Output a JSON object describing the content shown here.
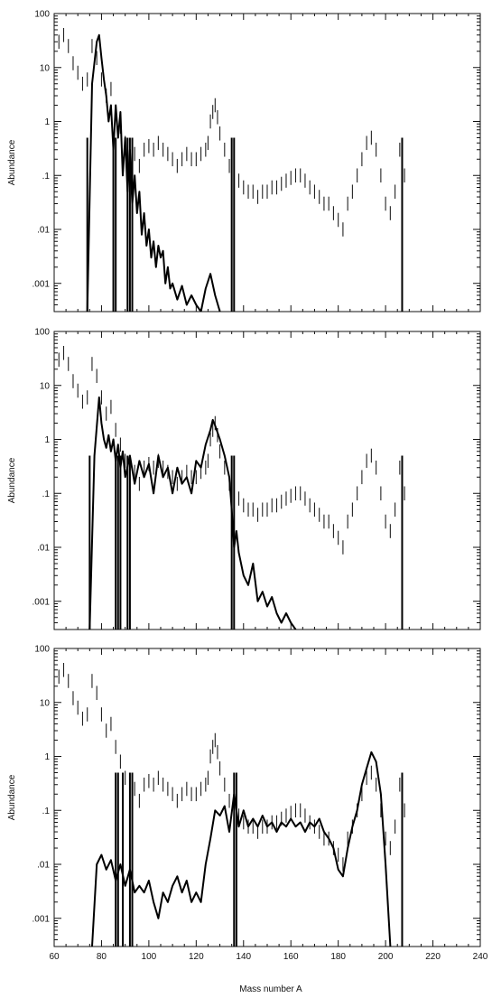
{
  "figure": {
    "xlabel": "Mass number A",
    "x_ticks": [
      "60",
      "80",
      "100",
      "120",
      "140",
      "160",
      "180",
      "200",
      "220",
      "240"
    ],
    "y_ticks": [
      "100",
      "10",
      "1",
      ".1",
      ".01",
      ".001"
    ]
  },
  "chart_data": [
    {
      "type": "line",
      "title": "",
      "ylabel": "Abundance",
      "xlabel": "",
      "xlim": [
        60,
        240
      ],
      "ylim": [
        0.0003,
        100
      ],
      "yscale": "log",
      "grid": false,
      "series": [
        {
          "style": "errorbar",
          "x": [
            60,
            62,
            64,
            66,
            68,
            70,
            72,
            74,
            76,
            78,
            80,
            82,
            84,
            86,
            88,
            90,
            92,
            94,
            96,
            98,
            100,
            102,
            104,
            106,
            108,
            110,
            112,
            114,
            116,
            118,
            120,
            122,
            124,
            125,
            126,
            127,
            128,
            129,
            130,
            132,
            134,
            136,
            138,
            140,
            142,
            144,
            146,
            148,
            150,
            152,
            154,
            156,
            158,
            160,
            162,
            164,
            166,
            168,
            170,
            172,
            174,
            176,
            178,
            180,
            182,
            184,
            186,
            188,
            190,
            192,
            194,
            196,
            198,
            200,
            202,
            204,
            206,
            208
          ],
          "y": [
            20,
            30,
            40,
            25,
            12,
            8,
            5,
            6,
            25,
            15,
            6,
            3,
            4,
            1.5,
            0.8,
            0.4,
            0.2,
            0.25,
            0.15,
            0.3,
            0.35,
            0.3,
            0.4,
            0.3,
            0.25,
            0.2,
            0.15,
            0.2,
            0.25,
            0.2,
            0.2,
            0.25,
            0.3,
            0.4,
            1.0,
            1.5,
            2.0,
            1.2,
            0.6,
            0.3,
            0.15,
            0.1,
            0.08,
            0.06,
            0.05,
            0.05,
            0.04,
            0.05,
            0.05,
            0.06,
            0.06,
            0.07,
            0.08,
            0.09,
            0.1,
            0.1,
            0.08,
            0.06,
            0.05,
            0.04,
            0.03,
            0.03,
            0.02,
            0.015,
            0.01,
            0.03,
            0.05,
            0.1,
            0.2,
            0.4,
            0.5,
            0.3,
            0.1,
            0.03,
            0.02,
            0.05,
            0.3,
            0.1
          ]
        },
        {
          "style": "solid",
          "x": [
            74,
            76,
            78,
            79,
            80,
            81,
            82,
            83,
            84,
            85,
            86,
            87,
            88,
            89,
            90,
            91,
            92,
            93,
            94,
            95,
            96,
            97,
            98,
            99,
            100,
            101,
            102,
            103,
            104,
            105,
            106,
            107,
            108,
            109,
            110,
            112,
            114,
            116,
            118,
            120,
            122,
            124,
            126,
            128,
            130
          ],
          "y": [
            0.0003,
            5,
            30,
            40,
            15,
            6,
            3,
            1,
            2,
            0.3,
            2,
            0.5,
            1.5,
            0.1,
            0.5,
            0.05,
            0.3,
            0.03,
            0.1,
            0.02,
            0.05,
            0.008,
            0.02,
            0.005,
            0.01,
            0.003,
            0.006,
            0.002,
            0.005,
            0.003,
            0.004,
            0.001,
            0.002,
            0.0008,
            0.001,
            0.0005,
            0.0009,
            0.0004,
            0.0006,
            0.0004,
            0.0003,
            0.0008,
            0.0015,
            0.0006,
            0.0003
          ]
        }
      ],
      "spikes": [
        74,
        85,
        86,
        91,
        92,
        93,
        135,
        136,
        207
      ]
    },
    {
      "type": "line",
      "title": "",
      "ylabel": "Abundance",
      "xlabel": "",
      "xlim": [
        60,
        240
      ],
      "ylim": [
        0.0003,
        100
      ],
      "yscale": "log",
      "grid": false,
      "series": [
        {
          "style": "errorbar",
          "x": [
            60,
            62,
            64,
            66,
            68,
            70,
            72,
            74,
            76,
            78,
            80,
            82,
            84,
            86,
            88,
            90,
            92,
            94,
            96,
            98,
            100,
            102,
            104,
            106,
            108,
            110,
            112,
            114,
            116,
            118,
            120,
            122,
            124,
            125,
            126,
            127,
            128,
            129,
            130,
            132,
            134,
            136,
            138,
            140,
            142,
            144,
            146,
            148,
            150,
            152,
            154,
            156,
            158,
            160,
            162,
            164,
            166,
            168,
            170,
            172,
            174,
            176,
            178,
            180,
            182,
            184,
            186,
            188,
            190,
            192,
            194,
            196,
            198,
            200,
            202,
            204,
            206,
            208
          ],
          "y": [
            20,
            30,
            40,
            25,
            12,
            8,
            5,
            6,
            25,
            15,
            6,
            3,
            4,
            1.5,
            0.8,
            0.4,
            0.2,
            0.25,
            0.15,
            0.3,
            0.35,
            0.3,
            0.4,
            0.3,
            0.25,
            0.2,
            0.15,
            0.2,
            0.25,
            0.2,
            0.2,
            0.25,
            0.3,
            0.4,
            1.0,
            1.5,
            2.0,
            1.2,
            0.6,
            0.3,
            0.15,
            0.1,
            0.08,
            0.06,
            0.05,
            0.05,
            0.04,
            0.05,
            0.05,
            0.06,
            0.06,
            0.07,
            0.08,
            0.09,
            0.1,
            0.1,
            0.08,
            0.06,
            0.05,
            0.04,
            0.03,
            0.03,
            0.02,
            0.015,
            0.01,
            0.03,
            0.05,
            0.1,
            0.2,
            0.4,
            0.5,
            0.3,
            0.1,
            0.03,
            0.02,
            0.05,
            0.3,
            0.1
          ]
        },
        {
          "style": "solid",
          "x": [
            75,
            77,
            79,
            80,
            81,
            82,
            83,
            84,
            85,
            86,
            87,
            88,
            89,
            90,
            92,
            94,
            96,
            98,
            100,
            102,
            104,
            106,
            108,
            110,
            112,
            114,
            116,
            118,
            120,
            122,
            124,
            126,
            127,
            128,
            130,
            132,
            134,
            135,
            136,
            137,
            138,
            140,
            142,
            144,
            146,
            148,
            150,
            152,
            154,
            156,
            158,
            160,
            162
          ],
          "y": [
            0.0003,
            0.5,
            6,
            2,
            1,
            0.7,
            1.2,
            0.6,
            1.0,
            0.4,
            0.8,
            0.3,
            0.6,
            0.2,
            0.5,
            0.15,
            0.4,
            0.2,
            0.35,
            0.1,
            0.5,
            0.2,
            0.3,
            0.1,
            0.3,
            0.15,
            0.2,
            0.1,
            0.4,
            0.3,
            0.8,
            1.5,
            2.3,
            1.8,
            1.0,
            0.5,
            0.2,
            0.05,
            0.01,
            0.02,
            0.008,
            0.003,
            0.002,
            0.005,
            0.001,
            0.0015,
            0.0008,
            0.0012,
            0.0006,
            0.0004,
            0.0006,
            0.0004,
            0.0003
          ]
        }
      ],
      "spikes": [
        75,
        86,
        87,
        88,
        91,
        92,
        135,
        136,
        207
      ]
    },
    {
      "type": "line",
      "title": "",
      "ylabel": "Abundance",
      "xlabel": "Mass number A",
      "xlim": [
        60,
        240
      ],
      "ylim": [
        0.0003,
        100
      ],
      "yscale": "log",
      "grid": false,
      "series": [
        {
          "style": "errorbar",
          "x": [
            60,
            62,
            64,
            66,
            68,
            70,
            72,
            74,
            76,
            78,
            80,
            82,
            84,
            86,
            88,
            90,
            92,
            94,
            96,
            98,
            100,
            102,
            104,
            106,
            108,
            110,
            112,
            114,
            116,
            118,
            120,
            122,
            124,
            125,
            126,
            127,
            128,
            129,
            130,
            132,
            134,
            136,
            138,
            140,
            142,
            144,
            146,
            148,
            150,
            152,
            154,
            156,
            158,
            160,
            162,
            164,
            166,
            168,
            170,
            172,
            174,
            176,
            178,
            180,
            182,
            184,
            186,
            188,
            190,
            192,
            194,
            196,
            198,
            200,
            202,
            204,
            206,
            208
          ],
          "y": [
            20,
            30,
            40,
            25,
            12,
            8,
            5,
            6,
            25,
            15,
            6,
            3,
            4,
            1.5,
            0.8,
            0.4,
            0.2,
            0.25,
            0.15,
            0.3,
            0.35,
            0.3,
            0.4,
            0.3,
            0.25,
            0.2,
            0.15,
            0.2,
            0.25,
            0.2,
            0.2,
            0.25,
            0.3,
            0.4,
            1.0,
            1.5,
            2.0,
            1.2,
            0.6,
            0.3,
            0.15,
            0.1,
            0.08,
            0.06,
            0.05,
            0.05,
            0.04,
            0.05,
            0.05,
            0.06,
            0.06,
            0.07,
            0.08,
            0.09,
            0.1,
            0.1,
            0.08,
            0.06,
            0.05,
            0.04,
            0.03,
            0.03,
            0.02,
            0.015,
            0.01,
            0.03,
            0.05,
            0.1,
            0.2,
            0.4,
            0.5,
            0.3,
            0.1,
            0.03,
            0.02,
            0.05,
            0.3,
            0.1
          ]
        },
        {
          "style": "solid",
          "x": [
            76,
            78,
            80,
            82,
            84,
            86,
            88,
            90,
            92,
            94,
            96,
            98,
            100,
            102,
            104,
            106,
            108,
            110,
            112,
            114,
            116,
            118,
            120,
            122,
            124,
            126,
            128,
            130,
            132,
            134,
            136,
            138,
            140,
            142,
            144,
            146,
            148,
            150,
            152,
            154,
            156,
            158,
            160,
            162,
            164,
            166,
            168,
            170,
            172,
            174,
            176,
            178,
            180,
            182,
            184,
            186,
            188,
            190,
            192,
            194,
            196,
            198,
            200,
            202
          ],
          "y": [
            0.0003,
            0.01,
            0.015,
            0.008,
            0.012,
            0.005,
            0.01,
            0.004,
            0.008,
            0.003,
            0.004,
            0.003,
            0.005,
            0.002,
            0.001,
            0.003,
            0.002,
            0.004,
            0.006,
            0.003,
            0.005,
            0.002,
            0.003,
            0.002,
            0.01,
            0.03,
            0.1,
            0.08,
            0.12,
            0.04,
            0.2,
            0.05,
            0.1,
            0.05,
            0.07,
            0.05,
            0.08,
            0.05,
            0.06,
            0.04,
            0.06,
            0.05,
            0.07,
            0.05,
            0.06,
            0.04,
            0.06,
            0.05,
            0.07,
            0.04,
            0.03,
            0.02,
            0.008,
            0.006,
            0.02,
            0.05,
            0.1,
            0.3,
            0.6,
            1.2,
            0.8,
            0.2,
            0.01,
            0.0003
          ]
        }
      ],
      "spikes": [
        86,
        87,
        89,
        92,
        93,
        136,
        137,
        207
      ]
    }
  ]
}
